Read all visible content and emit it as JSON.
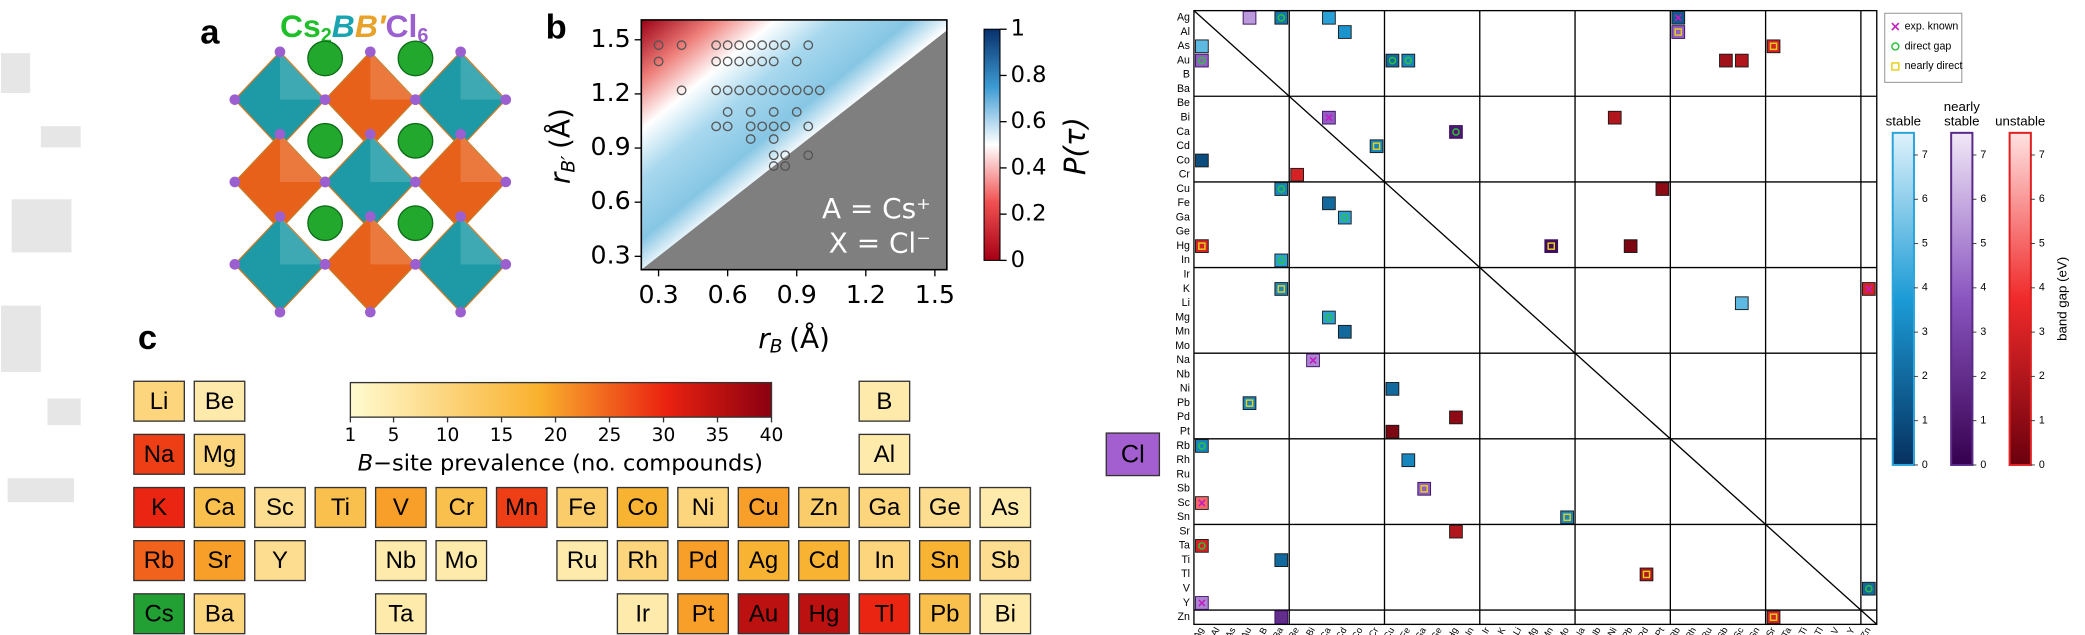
{
  "figure_labels": [
    "a",
    "b",
    "c"
  ],
  "formula": [
    "Cs",
    "2",
    "B",
    "B′",
    "Cl",
    "6"
  ],
  "chart_data": [
    {
      "type": "scatter",
      "x": [
        0.3,
        0.4,
        0.55,
        0.6,
        0.65,
        0.7,
        0.75,
        0.8,
        0.85,
        0.95,
        0.3,
        0.55,
        0.6,
        0.65,
        0.7,
        0.75,
        0.8,
        0.9,
        0.4,
        0.55,
        0.6,
        0.65,
        0.7,
        0.75,
        0.8,
        0.85,
        0.9,
        0.95,
        1.0,
        0.6,
        0.7,
        0.8,
        0.9,
        0.55,
        0.6,
        0.7,
        0.75,
        0.8,
        0.85,
        0.95,
        0.7,
        0.8,
        0.8,
        0.85,
        0.95,
        0.8,
        0.85
      ],
      "y": [
        1.47,
        1.47,
        1.47,
        1.47,
        1.47,
        1.47,
        1.47,
        1.47,
        1.47,
        1.47,
        1.38,
        1.38,
        1.38,
        1.38,
        1.38,
        1.38,
        1.38,
        1.38,
        1.22,
        1.22,
        1.22,
        1.22,
        1.22,
        1.22,
        1.22,
        1.22,
        1.22,
        1.22,
        1.22,
        1.1,
        1.1,
        1.1,
        1.1,
        1.02,
        1.02,
        1.02,
        1.02,
        1.02,
        1.02,
        1.02,
        0.95,
        0.95,
        0.86,
        0.86,
        0.86,
        0.8,
        0.8
      ],
      "xlim": [
        0.225,
        1.552
      ],
      "ylim": [
        0.226,
        1.61
      ],
      "xticks": [
        0.3,
        0.6,
        0.9,
        1.2,
        1.5
      ],
      "yticks": [
        0.3,
        0.6,
        0.9,
        1.2,
        1.5
      ],
      "x_label": [
        "r",
        "B",
        "(Å)"
      ],
      "y_label": [
        "r",
        "B′",
        "(Å)"
      ],
      "annotations": [
        "A = Cs⁺",
        "X = Cl⁻"
      ],
      "colorbar": {
        "label": "P(τ)",
        "clim": [
          0,
          1
        ],
        "ticks": [
          0,
          0.2,
          0.4,
          0.6,
          0.8,
          1
        ]
      }
    },
    {
      "type": "periodic-heatmap",
      "rows": [
        [
          "Li",
          "Be",
          null,
          null,
          null,
          null,
          null,
          null,
          null,
          null,
          null,
          null,
          "B",
          null,
          null
        ],
        [
          "Na",
          "Mg",
          null,
          null,
          null,
          null,
          null,
          null,
          null,
          null,
          null,
          null,
          "Al",
          null,
          null
        ],
        [
          "K",
          "Ca",
          "Sc",
          "Ti",
          "V",
          "Cr",
          "Mn",
          "Fe",
          "Co",
          "Ni",
          "Cu",
          "Zn",
          "Ga",
          "Ge",
          "As"
        ],
        [
          "Rb",
          "Sr",
          "Y",
          null,
          "Nb",
          "Mo",
          null,
          "Ru",
          "Rh",
          "Pd",
          "Ag",
          "Cd",
          "In",
          "Sn",
          "Sb"
        ],
        [
          "Cs",
          "Ba",
          null,
          null,
          "Ta",
          null,
          null,
          null,
          "Ir",
          "Pt",
          "Au",
          "Hg",
          "Tl",
          "Pb",
          "Bi"
        ]
      ],
      "values": [
        [
          10,
          5,
          null,
          null,
          null,
          null,
          null,
          null,
          null,
          null,
          null,
          null,
          5,
          null,
          null
        ],
        [
          28,
          10,
          null,
          null,
          null,
          null,
          null,
          null,
          null,
          null,
          null,
          null,
          5,
          null,
          null
        ],
        [
          30,
          15,
          8,
          15,
          20,
          15,
          28,
          12,
          18,
          10,
          20,
          12,
          10,
          8,
          5
        ],
        [
          25,
          20,
          8,
          null,
          5,
          5,
          null,
          5,
          10,
          20,
          18,
          18,
          10,
          18,
          8
        ],
        [
          null,
          10,
          null,
          null,
          5,
          null,
          null,
          null,
          5,
          20,
          35,
          35,
          30,
          15,
          5
        ]
      ],
      "a_site_color": "#22a033",
      "clim": [
        1,
        40
      ],
      "cticks": [
        1,
        5,
        10,
        15,
        20,
        25,
        30,
        35,
        40
      ],
      "clabel": [
        "B",
        "−site prevalence (no. compounds)"
      ]
    },
    {
      "type": "matrix",
      "halide": "Cl",
      "elements": [
        "Ag",
        "Al",
        "As",
        "Au",
        "B",
        "Ba",
        "Be",
        "Bi",
        "Ca",
        "Cd",
        "Co",
        "Cr",
        "Cu",
        "Fe",
        "Ga",
        "Ge",
        "Hg",
        "In",
        "Ir",
        "K",
        "Li",
        "Mg",
        "Mn",
        "Mo",
        "Na",
        "Nb",
        "Ni",
        "Pb",
        "Pd",
        "Pt",
        "Rb",
        "Rh",
        "Ru",
        "Sb",
        "Sc",
        "Sn",
        "Sr",
        "Ta",
        "Ti",
        "Tl",
        "V",
        "Y",
        "Zn"
      ],
      "cells": [
        [
          "Ag",
          "Ba",
          "stable",
          2.5,
          "direct gap"
        ],
        [
          "Ag",
          "Ca",
          "stable",
          4
        ],
        [
          "Ag",
          "Au",
          "nearly stable",
          5.5
        ],
        [
          "Ag",
          "Rb",
          "stable",
          1.5,
          "exp. known"
        ],
        [
          "Al",
          "Cd",
          "stable",
          3.5
        ],
        [
          "Al",
          "Rb",
          "nearly stable",
          4,
          "nearly direct"
        ],
        [
          "As",
          "Ag",
          "stable",
          5
        ],
        [
          "As",
          "Sr",
          "unstable",
          3,
          "nearly direct"
        ],
        [
          "Au",
          "Ag",
          "nearly stable",
          4,
          "direct gap"
        ],
        [
          "Au",
          "Cu",
          "stable",
          2,
          "direct gap"
        ],
        [
          "Au",
          "Fe",
          "stable",
          3,
          "direct gap"
        ],
        [
          "Au",
          "Sb",
          "unstable",
          1.5
        ],
        [
          "Au",
          "Sc",
          "unstable",
          2
        ],
        [
          "Bi",
          "Ca",
          "nearly stable",
          4,
          "exp. known"
        ],
        [
          "Bi",
          "Ni",
          "unstable",
          2
        ],
        [
          "Ca",
          "Hg",
          "nearly stable",
          1,
          "direct gap"
        ],
        [
          "Cd",
          "Cr",
          "stable",
          3,
          "nearly direct"
        ],
        [
          "Co",
          "Ag",
          "stable",
          1
        ],
        [
          "Cr",
          "Be",
          "unstable",
          3
        ],
        [
          "Cu",
          "Ba",
          "stable",
          3,
          "direct gap"
        ],
        [
          "Cu",
          "Pt",
          "unstable",
          1
        ],
        [
          "Fe",
          "Ca",
          "stable",
          2
        ],
        [
          "Ga",
          "Cd",
          "stable",
          4,
          "direct gap"
        ],
        [
          "Hg",
          "Ag",
          "unstable",
          3,
          "nearly direct"
        ],
        [
          "Hg",
          "Mn",
          "nearly stable",
          0.5,
          "nearly direct"
        ],
        [
          "Hg",
          "Pb",
          "unstable",
          0.5
        ],
        [
          "In",
          "Ba",
          "stable",
          4,
          "direct gap"
        ],
        [
          "K",
          "Ba",
          "stable",
          3,
          "nearly direct"
        ],
        [
          "K",
          "Zn",
          "unstable",
          3,
          "exp. known"
        ],
        [
          "Li",
          "Sc",
          "stable",
          5
        ],
        [
          "Mg",
          "Ca",
          "stable",
          4,
          "direct gap"
        ],
        [
          "Mn",
          "Cd",
          "stable",
          2
        ],
        [
          "Na",
          "Bi",
          "nearly stable",
          5,
          "exp. known"
        ],
        [
          "Ni",
          "Cu",
          "stable",
          2
        ],
        [
          "Pb",
          "Au",
          "stable",
          3,
          "nearly direct"
        ],
        [
          "Pd",
          "Hg",
          "unstable",
          1
        ],
        [
          "Pt",
          "Cu",
          "unstable",
          0.5
        ],
        [
          "Rb",
          "Ag",
          "stable",
          3,
          "direct gap"
        ],
        [
          "Rh",
          "Fe",
          "stable",
          3
        ],
        [
          "Sb",
          "Ga",
          "nearly stable",
          4,
          "nearly direct"
        ],
        [
          "Sc",
          "Ag",
          "unstable",
          5,
          "exp. known"
        ],
        [
          "Sn",
          "Mo",
          "stable",
          3,
          "nearly direct"
        ],
        [
          "Sr",
          "Hg",
          "unstable",
          2
        ],
        [
          "Ta",
          "Ag",
          "unstable",
          3,
          "direct gap"
        ],
        [
          "Ti",
          "Ba",
          "stable",
          2
        ],
        [
          "Tl",
          "Pd",
          "unstable",
          2,
          "nearly direct"
        ],
        [
          "V",
          "Zn",
          "stable",
          2,
          "direct gap"
        ],
        [
          "Y",
          "Ag",
          "nearly stable",
          5,
          "exp. known"
        ],
        [
          "Zn",
          "Sr",
          "unstable",
          3,
          "nearly direct"
        ],
        [
          "Zn",
          "Ba",
          "nearly stable",
          2
        ]
      ],
      "legend": [
        "exp. known",
        "direct gap",
        "nearly direct"
      ],
      "stabilities": [
        [
          "stable"
        ],
        [
          "nearly",
          "stable"
        ],
        [
          "unstable"
        ]
      ],
      "clim": [
        0,
        7.5
      ],
      "cticks": [
        0,
        1,
        2,
        3,
        4,
        5,
        6,
        7
      ],
      "clabel": "band gap (eV)"
    }
  ]
}
